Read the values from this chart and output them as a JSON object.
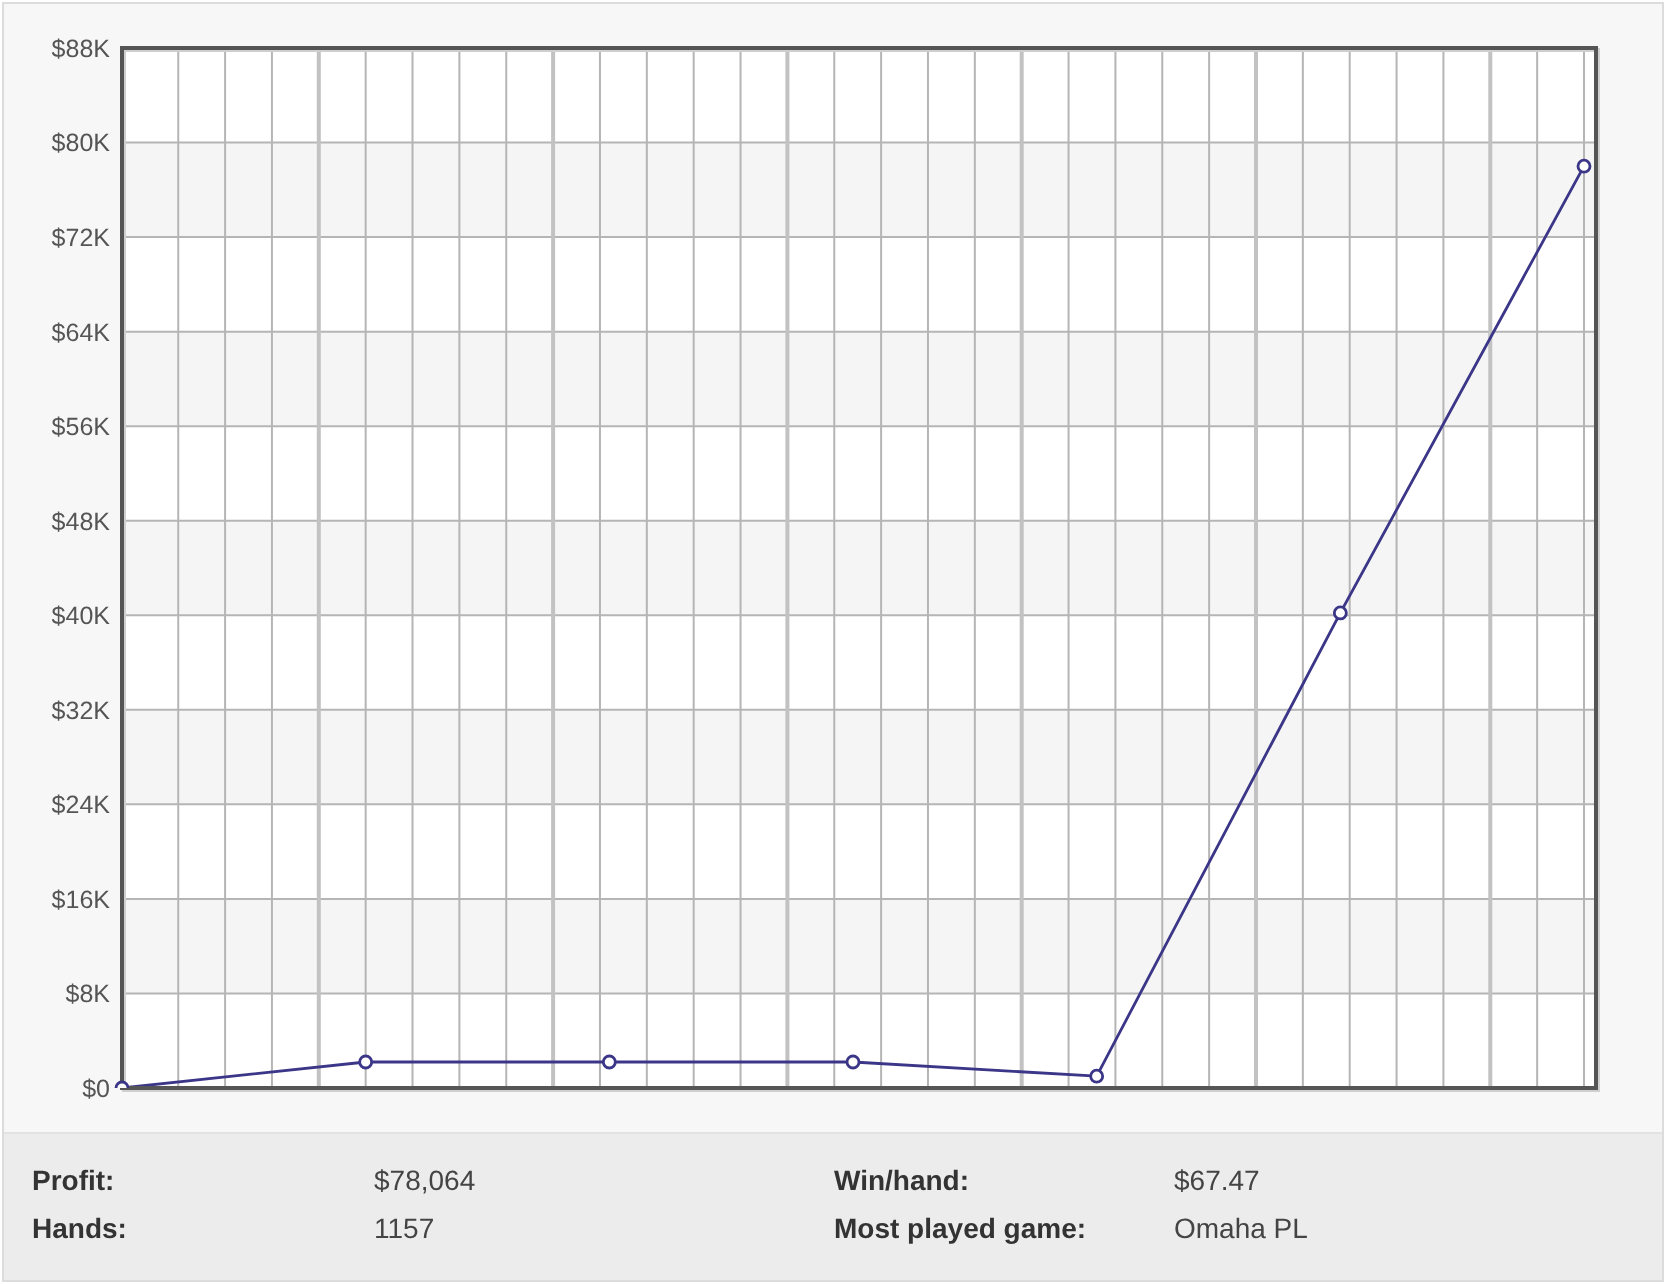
{
  "chart_data": {
    "type": "line",
    "categories": [
      null,
      null,
      null,
      null,
      null,
      null,
      null
    ],
    "series": [
      {
        "color": "#3b3687",
        "values": [
          0,
          2200,
          2200,
          2200,
          1000,
          40200,
          78000
        ]
      }
    ],
    "ylim": [
      0,
      88000
    ],
    "yticks": [
      {
        "value": 0,
        "label": "$0"
      },
      {
        "value": 8000,
        "label": "$8K"
      },
      {
        "value": 16000,
        "label": "$16K"
      },
      {
        "value": 24000,
        "label": "$24K"
      },
      {
        "value": 32000,
        "label": "$32K"
      },
      {
        "value": 40000,
        "label": "$40K"
      },
      {
        "value": 48000,
        "label": "$48K"
      },
      {
        "value": 56000,
        "label": "$56K"
      },
      {
        "value": 64000,
        "label": "$64K"
      },
      {
        "value": 72000,
        "label": "$72K"
      },
      {
        "value": 80000,
        "label": "$80K"
      },
      {
        "value": 88000,
        "label": "$88K"
      }
    ],
    "grid": true,
    "marker": "circle",
    "line_style": "solid",
    "tick_labels": "y",
    "annotations": [
      "Profit:",
      "$78,064",
      "Win/hand:",
      "$67.47",
      "Hands:",
      "1157",
      "Most played game:",
      "Omaha PL"
    ]
  }
}
